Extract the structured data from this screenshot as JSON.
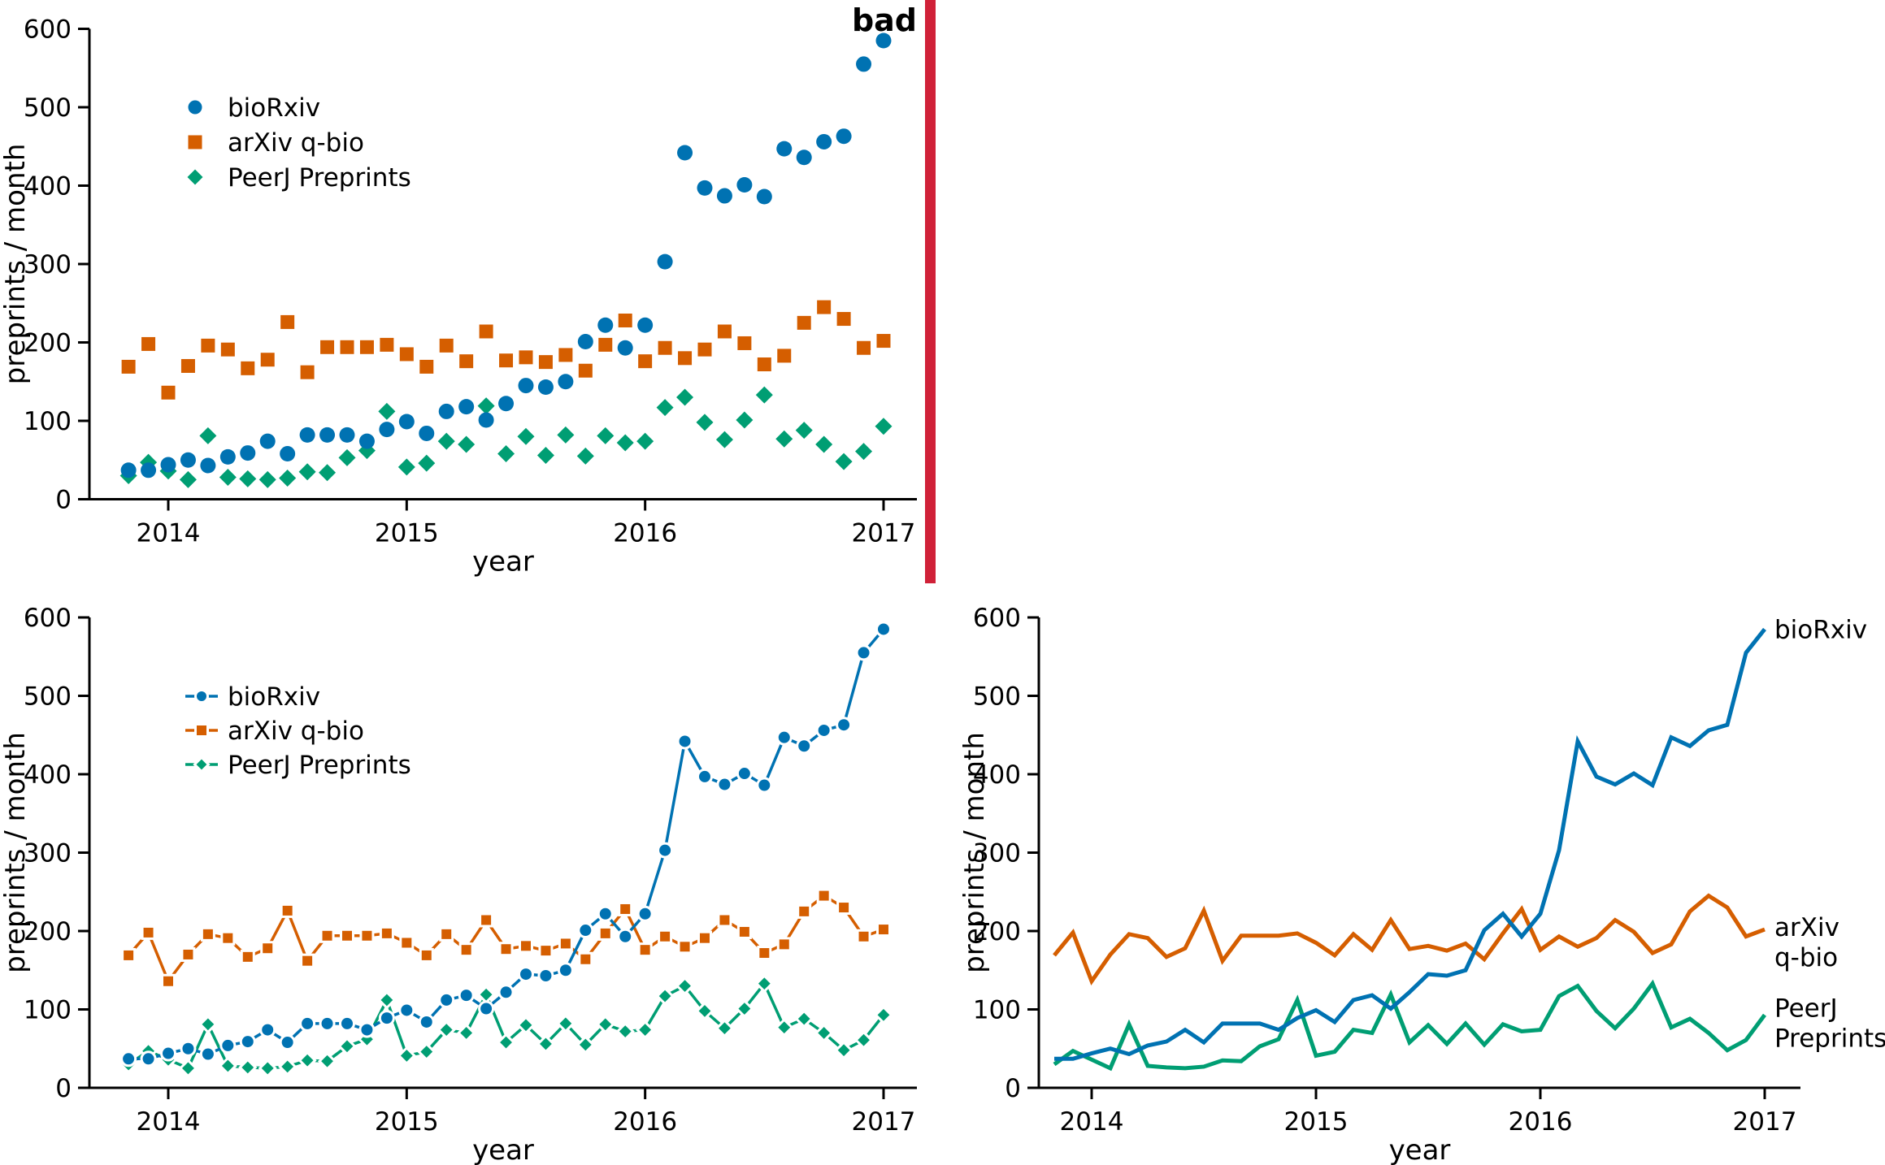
{
  "figure": {
    "background": "#ffffff"
  },
  "stamp": {
    "label": "bad",
    "color": "#d02138"
  },
  "axes": {
    "xlabel": "year",
    "ylabel": "preprints / month",
    "xticks": [
      2014,
      2015,
      2016,
      2017
    ],
    "yticks": [
      0,
      100,
      200,
      300,
      400,
      500,
      600
    ],
    "ylim": [
      0,
      600
    ],
    "grid": false
  },
  "chart_data": {
    "type_note": "three panels sharing the same monthly data",
    "months": [
      "2013-11",
      "2013-12",
      "2014-01",
      "2014-02",
      "2014-03",
      "2014-04",
      "2014-05",
      "2014-06",
      "2014-07",
      "2014-08",
      "2014-09",
      "2014-10",
      "2014-11",
      "2014-12",
      "2015-01",
      "2015-02",
      "2015-03",
      "2015-04",
      "2015-05",
      "2015-06",
      "2015-07",
      "2015-08",
      "2015-09",
      "2015-10",
      "2015-11",
      "2015-12",
      "2016-01",
      "2016-02",
      "2016-03",
      "2016-04",
      "2016-05",
      "2016-06",
      "2016-07",
      "2016-08",
      "2016-09",
      "2016-10",
      "2016-11",
      "2016-12",
      "2017-01"
    ],
    "series": [
      {
        "id": "arxiv",
        "name": "arXiv q-bio",
        "color": "#D55E00",
        "marker": "square",
        "values": [
          169,
          198,
          136,
          170,
          196,
          191,
          167,
          178,
          226,
          162,
          194,
          194,
          194,
          197,
          185,
          169,
          196,
          176,
          214,
          177,
          181,
          175,
          184,
          164,
          197,
          228,
          176,
          193,
          180,
          191,
          214,
          199,
          172,
          183,
          225,
          245,
          230,
          193,
          202
        ]
      },
      {
        "id": "peerj",
        "name": "PeerJ Preprints",
        "color": "#009E73",
        "marker": "diamond",
        "values": [
          30,
          47,
          36,
          25,
          81,
          28,
          26,
          25,
          27,
          35,
          34,
          53,
          62,
          112,
          41,
          46,
          74,
          70,
          119,
          58,
          80,
          56,
          82,
          55,
          81,
          72,
          74,
          117,
          130,
          98,
          76,
          101,
          133,
          77,
          88,
          70,
          48,
          61,
          93
        ]
      },
      {
        "id": "biorxiv",
        "name": "bioRxiv",
        "color": "#0072B2",
        "marker": "circle",
        "values": [
          37,
          37,
          44,
          50,
          43,
          54,
          59,
          74,
          58,
          82,
          82,
          82,
          74,
          89,
          99,
          84,
          112,
          118,
          101,
          122,
          145,
          143,
          150,
          201,
          222,
          193,
          222,
          303,
          442,
          397,
          387,
          401,
          386,
          447,
          436,
          456,
          463,
          555,
          585
        ]
      }
    ],
    "legend_order": [
      "biorxiv",
      "arxiv",
      "peerj"
    ],
    "panels": [
      {
        "id": "top-left",
        "type": "scatter",
        "legend": true,
        "stamped": "bad"
      },
      {
        "id": "bottom-left",
        "type": "line-with-markers",
        "legend": true
      },
      {
        "id": "bottom-right",
        "type": "line",
        "legend": false,
        "direct_labels": {
          "biorxiv": [
            "bioRxiv"
          ],
          "arxiv": [
            "arXiv",
            "q-bio"
          ],
          "peerj": [
            "PeerJ",
            "Preprints"
          ]
        }
      }
    ]
  }
}
